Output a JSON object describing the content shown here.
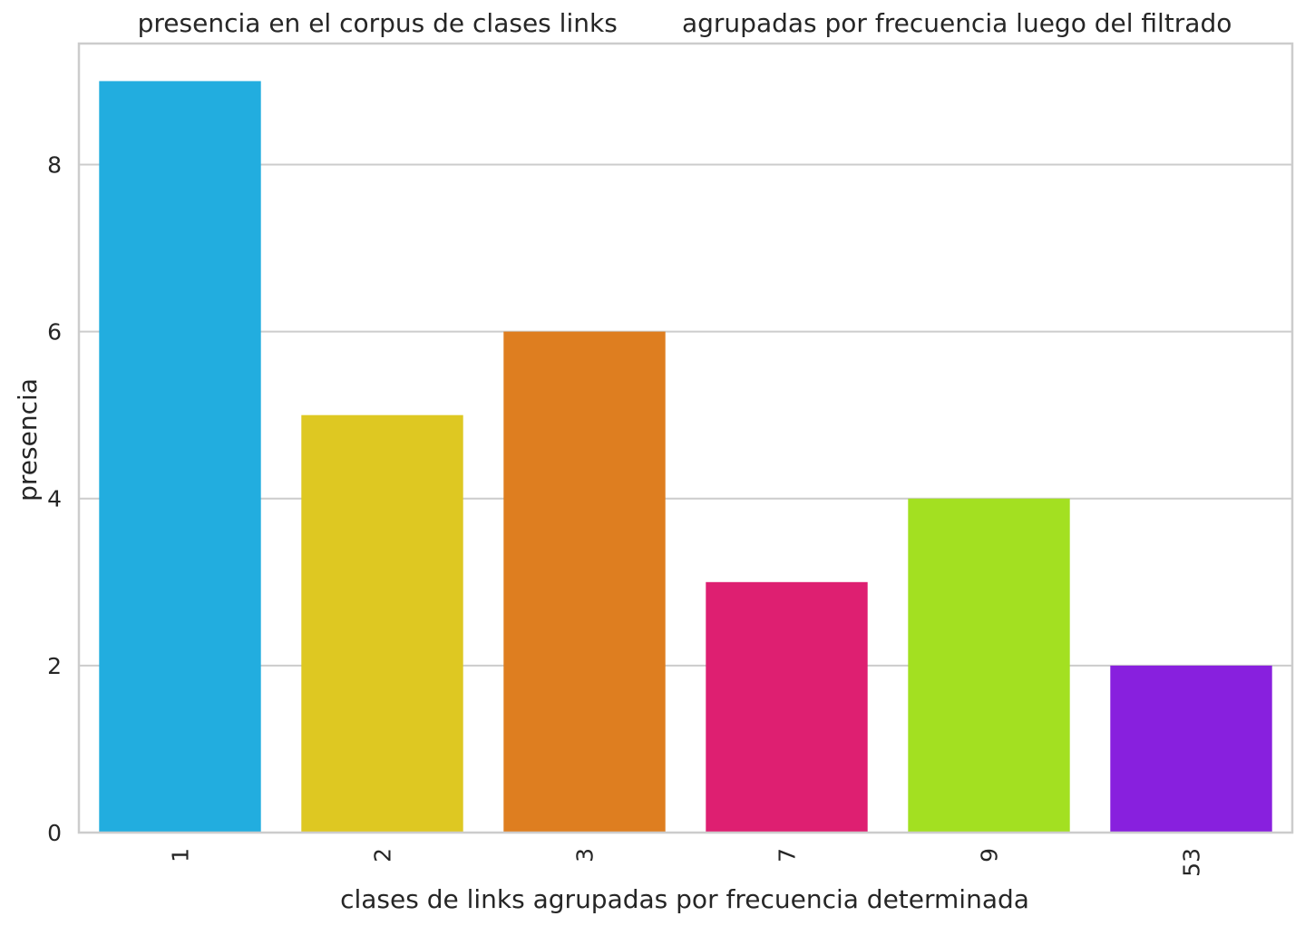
{
  "chart_data": {
    "type": "bar",
    "title": "presencia en el corpus de clases links        agrupadas por frecuencia luego del filtrado",
    "xlabel": "clases de links agrupadas por frecuencia determinada",
    "ylabel": "presencia",
    "categories": [
      "1",
      "2",
      "3",
      "7",
      "9",
      "53"
    ],
    "values": [
      9,
      5,
      6,
      3,
      4,
      2
    ],
    "colors": [
      "#22ADDF",
      "#DEC822",
      "#DE7E20",
      "#DE1F71",
      "#A3E021",
      "#8820DE"
    ],
    "ylim": [
      0,
      9.45
    ],
    "yticks": [
      0,
      2,
      4,
      6,
      8
    ],
    "xtick_rotation": -90,
    "grid": true,
    "legend": "none"
  }
}
